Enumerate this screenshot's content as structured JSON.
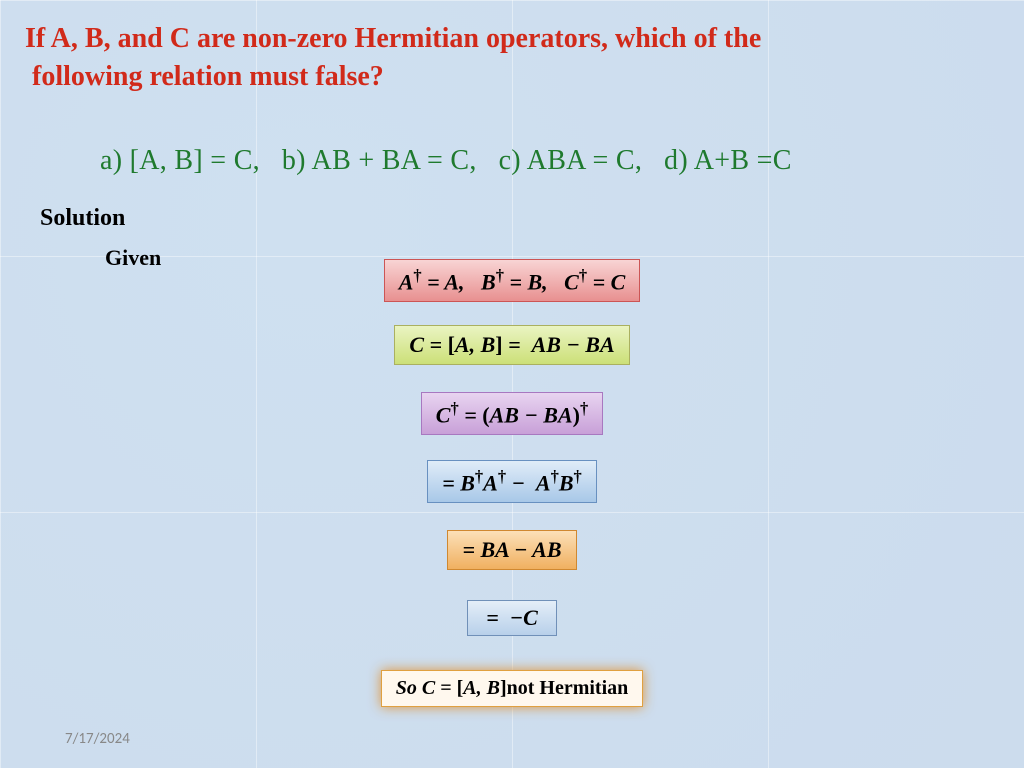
{
  "question": {
    "line1": "If A, B, and C are non-zero Hermitian operators, which of the",
    "line2": "following relation must false?",
    "color": "#d12a1a"
  },
  "options": {
    "a": "a) [A, B] = C,",
    "b": "b) AB + BA = C,",
    "c": "c) ABA = C,",
    "d": "d) A+B =C",
    "color": "#1f7a2e"
  },
  "labels": {
    "solution": "Solution",
    "given": "Given"
  },
  "equations": {
    "e1": "A<span class='dagger'>†</span> = A,&nbsp;&nbsp;&nbsp;B<span class='dagger'>†</span> = B,&nbsp;&nbsp;&nbsp;C<span class='dagger'>†</span> = C",
    "e2": "C = <span class='nrm'>[</span>A, B<span class='nrm'>]</span> =&nbsp;&nbsp;AB − BA",
    "e3": "C<span class='dagger'>†</span> = <span class='nrm'>(</span>AB − BA<span class='nrm'>)</span><span class='dagger'>†</span>",
    "e4": "= B<span class='dagger'>†</span>A<span class='dagger'>†</span> −&nbsp;&nbsp;A<span class='dagger'>†</span>B<span class='dagger'>†</span>",
    "e5": "= BA − AB",
    "e6": "=&nbsp;&nbsp;−C",
    "e7": "So C = <span class='nrm'>[</span>A, B<span class='nrm'>]</span><span class='nrm'>not Hermitian</span>"
  },
  "footer": {
    "date": "7/17/2024"
  },
  "colors": {
    "background": "#d6e4f0",
    "eq1_bg": "#f0b0b0",
    "eq2_bg": "#d8e890",
    "eq3_bg": "#d8b8e8",
    "eq4_bg": "#c0d8f0",
    "eq5_bg": "#f8c888",
    "eq6_bg": "#c8dcf0",
    "eq7_bg": "#fff8ee"
  }
}
